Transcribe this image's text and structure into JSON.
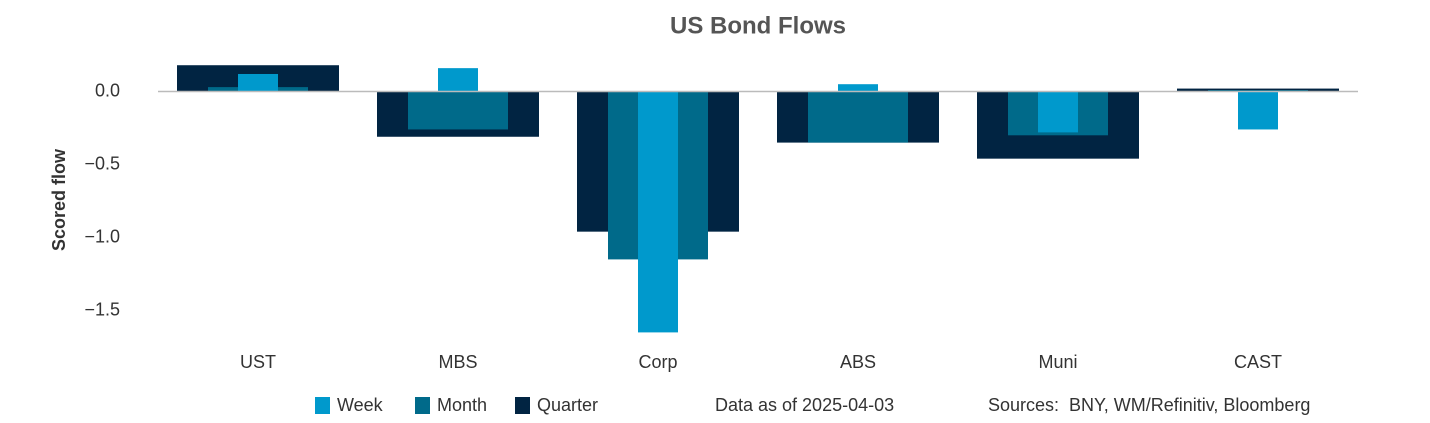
{
  "chart_data": {
    "type": "bar",
    "title": "US Bond Flows",
    "y_label": "Scored flow",
    "categories": [
      "UST",
      "MBS",
      "Corp",
      "ABS",
      "Muni",
      "CAST"
    ],
    "series": [
      {
        "name": "Week",
        "color": "#0099cc",
        "values": [
          0.12,
          0.16,
          -1.65,
          0.05,
          -0.28,
          -0.26
        ]
      },
      {
        "name": "Month",
        "color": "#006a8a",
        "values": [
          0.03,
          -0.26,
          -1.15,
          -0.35,
          -0.3,
          0.01
        ]
      },
      {
        "name": "Quarter",
        "color": "#012442",
        "values": [
          0.18,
          -0.31,
          -0.96,
          -0.35,
          -0.46,
          0.02
        ]
      }
    ],
    "ylim": [
      -1.75,
      0.25
    ],
    "yticks": [
      {
        "value": 0,
        "label": "0.0"
      },
      {
        "value": -0.5,
        "label": "−0.5"
      },
      {
        "value": -1,
        "label": "−1.0"
      },
      {
        "value": -1.5,
        "label": "−1.5"
      }
    ],
    "grid": false,
    "note": "Data as of 2025-04-03",
    "source": "Sources:  BNY, WM/Refinitiv, Bloomberg"
  }
}
